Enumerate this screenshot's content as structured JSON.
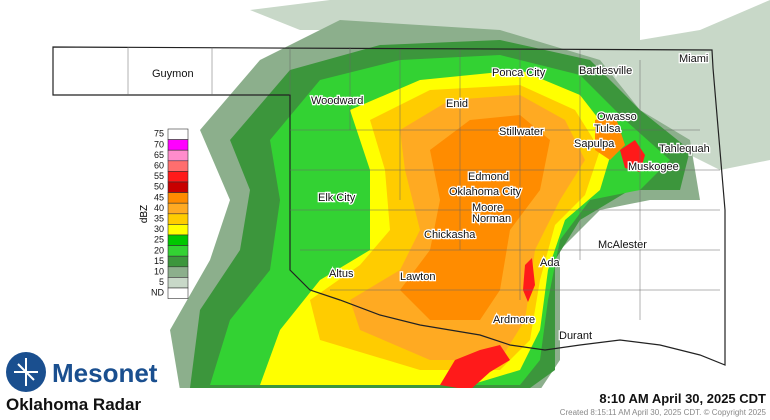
{
  "map": {
    "title": "Oklahoma Radar",
    "brand": "Mesonet",
    "timestamp": "8:10 AM April 30, 2025 CDT",
    "credit": "Created 8:15:11 AM April 30, 2025 CDT. © Copyright 2025",
    "legend": {
      "unit": "dBZ",
      "items": [
        {
          "label": 75,
          "color": "#ffffff"
        },
        {
          "label": 70,
          "color": "#ff00ff"
        },
        {
          "label": 65,
          "color": "#ff8ccc"
        },
        {
          "label": 60,
          "color": "#ff6e6e"
        },
        {
          "label": 55,
          "color": "#ff1a1a"
        },
        {
          "label": 50,
          "color": "#c80000"
        },
        {
          "label": 45,
          "color": "#ff8c00"
        },
        {
          "label": 40,
          "color": "#ffaa22"
        },
        {
          "label": 35,
          "color": "#ffcc00"
        },
        {
          "label": 30,
          "color": "#ffff00"
        },
        {
          "label": 25,
          "color": "#00c800"
        },
        {
          "label": 20,
          "color": "#33d233"
        },
        {
          "label": 15,
          "color": "#3c963c"
        },
        {
          "label": 10,
          "color": "#8caf8c"
        },
        {
          "label": 5,
          "color": "#c8d8c8"
        },
        {
          "label": "ND",
          "color": "#ffffff"
        }
      ]
    },
    "cities": [
      "Guymon",
      "Miami",
      "Ponca City",
      "Bartlesville",
      "Woodward",
      "Enid",
      "Owasso",
      "Tulsa",
      "Stillwater",
      "Sapulpa",
      "Tahlequah",
      "Muskogee",
      "Edmond",
      "Oklahoma City",
      "Elk City",
      "Moore",
      "Norman",
      "McAlester",
      "Chickasha",
      "Ada",
      "Altus",
      "Lawton",
      "Ardmore",
      "Durant"
    ]
  }
}
